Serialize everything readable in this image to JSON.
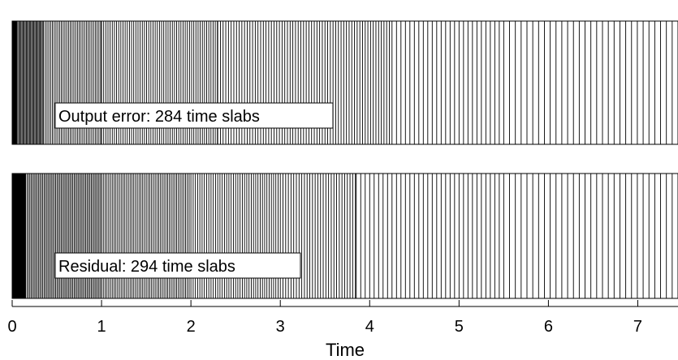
{
  "chart_data": {
    "type": "timeline",
    "xlabel": "Time",
    "xlim": [
      0,
      7.45
    ],
    "xticks": [
      0,
      1,
      2,
      3,
      4,
      5,
      6,
      7
    ],
    "grid": false,
    "panels": [
      {
        "name": "Output error: 284 time slabs",
        "slab_count": 284,
        "label": "Output error: 284 time slabs",
        "density_profile": [
          {
            "from": 0.0,
            "to": 0.05,
            "step": 0.004
          },
          {
            "from": 0.05,
            "to": 0.35,
            "step": 0.012
          },
          {
            "from": 0.35,
            "to": 1.0,
            "step": 0.02
          },
          {
            "from": 1.0,
            "to": 2.3,
            "step": 0.024
          },
          {
            "from": 2.3,
            "to": 4.25,
            "step": 0.03
          },
          {
            "from": 4.25,
            "to": 5.5,
            "step": 0.05
          },
          {
            "from": 5.5,
            "to": 7.45,
            "step": 0.065
          }
        ]
      },
      {
        "name": "Residual: 294 time slabs",
        "slab_count": 294,
        "label": "Residual: 294 time slabs",
        "density_profile": [
          {
            "from": 0.0,
            "to": 0.15,
            "step": 0.004
          },
          {
            "from": 0.15,
            "to": 1.0,
            "step": 0.016
          },
          {
            "from": 1.0,
            "to": 2.0,
            "step": 0.02
          },
          {
            "from": 2.0,
            "to": 3.0,
            "step": 0.025
          },
          {
            "from": 3.0,
            "to": 3.85,
            "step": 0.03
          },
          {
            "from": 3.85,
            "to": 5.5,
            "step": 0.05
          },
          {
            "from": 5.5,
            "to": 7.45,
            "step": 0.065
          }
        ]
      }
    ]
  }
}
